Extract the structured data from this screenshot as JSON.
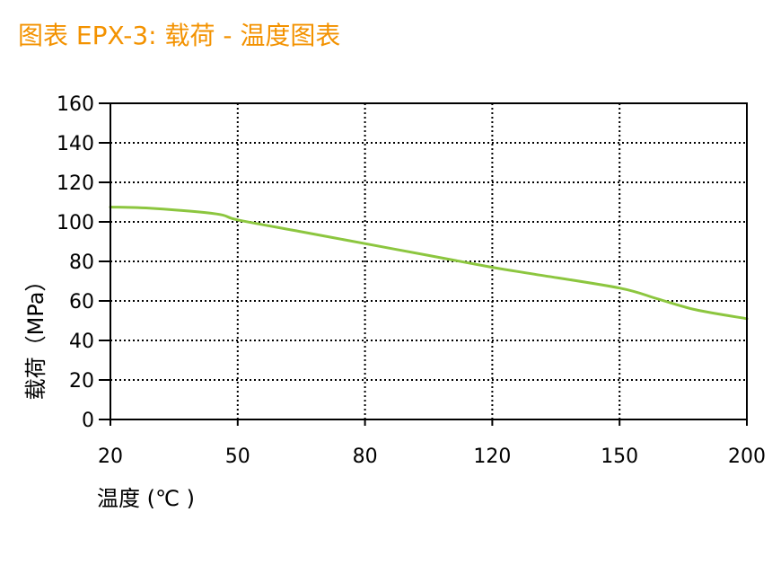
{
  "chart_data": {
    "type": "line",
    "title": "图表 EPX-3: 载荷 - 温度图表",
    "xlabel": "温度 (℃ )",
    "ylabel": "载荷（MPa）",
    "x_tick_labels": [
      "20",
      "50",
      "80",
      "120",
      "150",
      "200"
    ],
    "y_ticks": [
      0,
      20,
      40,
      60,
      80,
      100,
      120,
      140,
      160
    ],
    "ylim": [
      0,
      160
    ],
    "grid": true,
    "colors": {
      "title": "#F39200",
      "line": "#8CC63F",
      "grid": "#000000",
      "axis": "#000000"
    },
    "series": [
      {
        "values": [
          {
            "x": 20,
            "y": 107.5
          },
          {
            "x": 30,
            "y": 106.8
          },
          {
            "x": 45,
            "y": 104
          },
          {
            "x": 50,
            "y": 101
          },
          {
            "x": 65,
            "y": 95
          },
          {
            "x": 80,
            "y": 89
          },
          {
            "x": 100,
            "y": 83
          },
          {
            "x": 120,
            "y": 77
          },
          {
            "x": 130,
            "y": 73.5
          },
          {
            "x": 150,
            "y": 66.5
          },
          {
            "x": 165,
            "y": 61
          },
          {
            "x": 180,
            "y": 55.5
          },
          {
            "x": 200,
            "y": 51
          }
        ]
      }
    ]
  }
}
